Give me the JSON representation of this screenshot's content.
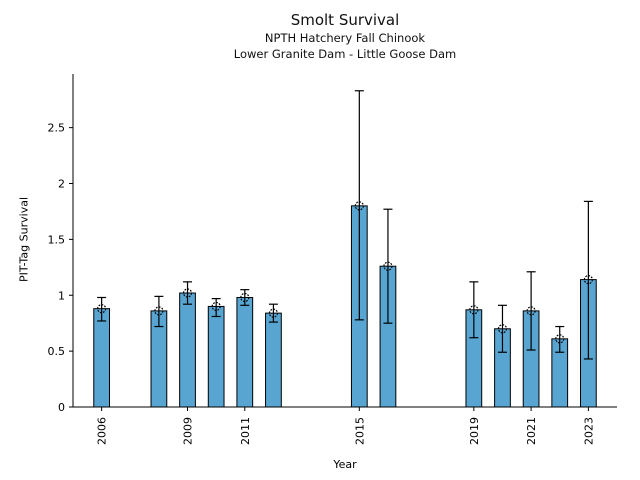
{
  "chart_data": {
    "type": "bar",
    "title": "Smolt Survival",
    "subtitle1": "NPTH Hatchery Fall Chinook",
    "subtitle2": "Lower Granite Dam - Little Goose Dam",
    "xlabel": "Year",
    "ylabel": "PIT-Tag Survival",
    "xlim": [
      2005,
      2024
    ],
    "ylim": [
      0,
      2.98
    ],
    "grid": false,
    "legend": null,
    "bar_color": "#58a5d2",
    "bar_edge_color": "#000000",
    "error_bar_color": "#000000",
    "marker": "open-circle",
    "bar_width_years": 0.55,
    "x_ticks": [
      2006,
      2009,
      2011,
      2015,
      2019,
      2021,
      2023
    ],
    "x_tick_labels": [
      "2006",
      "2009",
      "2011",
      "2015",
      "2019",
      "2021",
      "2023"
    ],
    "y_ticks": [
      0,
      0.5,
      1,
      1.5,
      2,
      2.5
    ],
    "y_tick_labels": [
      "0",
      "0.5",
      "1",
      "1.5",
      "2",
      "2.5"
    ],
    "points": [
      {
        "year": 2006,
        "value": 0.88,
        "err_lo": 0.77,
        "err_hi": 0.98
      },
      {
        "year": 2008,
        "value": 0.86,
        "err_lo": 0.72,
        "err_hi": 0.99
      },
      {
        "year": 2009,
        "value": 1.02,
        "err_lo": 0.92,
        "err_hi": 1.12
      },
      {
        "year": 2010,
        "value": 0.9,
        "err_lo": 0.81,
        "err_hi": 0.97
      },
      {
        "year": 2011,
        "value": 0.98,
        "err_lo": 0.91,
        "err_hi": 1.05
      },
      {
        "year": 2012,
        "value": 0.84,
        "err_lo": 0.76,
        "err_hi": 0.92
      },
      {
        "year": 2015,
        "value": 1.8,
        "err_lo": 0.78,
        "err_hi": 2.83
      },
      {
        "year": 2016,
        "value": 1.26,
        "err_lo": 0.75,
        "err_hi": 1.77
      },
      {
        "year": 2019,
        "value": 0.87,
        "err_lo": 0.62,
        "err_hi": 1.12
      },
      {
        "year": 2020,
        "value": 0.7,
        "err_lo": 0.49,
        "err_hi": 0.91
      },
      {
        "year": 2021,
        "value": 0.86,
        "err_lo": 0.51,
        "err_hi": 1.21
      },
      {
        "year": 2022,
        "value": 0.61,
        "err_lo": 0.49,
        "err_hi": 0.72
      },
      {
        "year": 2023,
        "value": 1.14,
        "err_lo": 0.43,
        "err_hi": 1.84
      }
    ]
  }
}
